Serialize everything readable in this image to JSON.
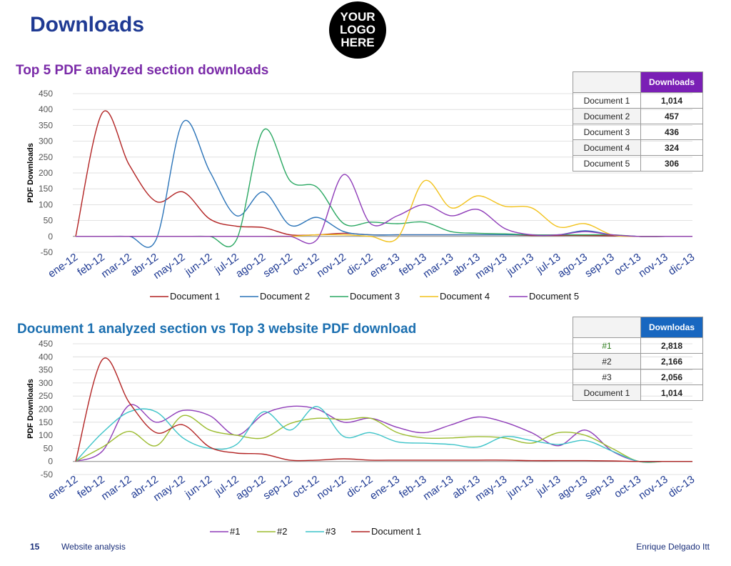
{
  "header": {
    "title": "Downloads",
    "logo_lines": [
      "YOUR",
      "LOGO",
      "HERE"
    ]
  },
  "footer": {
    "page_number": "15",
    "section": "Website analysis",
    "author": "Enrique Delgado Itt"
  },
  "colors": {
    "title": "#1f3a93",
    "doc1": "#b22222",
    "doc2": "#2a73b8",
    "doc3": "#2aa862",
    "doc4": "#f2c21c",
    "doc5": "#8e3bb8",
    "s1": "#8e3bb8",
    "s2": "#9bbb2e",
    "s3": "#3cc3c8",
    "s4": "#b22222"
  },
  "table1": {
    "header": "Downloads",
    "rows": [
      {
        "name": "Document 1",
        "value": "1,014"
      },
      {
        "name": "Document 2",
        "value": "457"
      },
      {
        "name": "Document 3",
        "value": "436"
      },
      {
        "name": "Document 4",
        "value": "324"
      },
      {
        "name": "Document 5",
        "value": "306"
      }
    ]
  },
  "table2": {
    "header": "Downlodas",
    "rows": [
      {
        "name": "#1",
        "value": "2,818"
      },
      {
        "name": "#2",
        "value": "2,166"
      },
      {
        "name": "#3",
        "value": "2,056"
      },
      {
        "name": "Document 1",
        "value": "1,014"
      }
    ]
  },
  "chart_data": [
    {
      "type": "line",
      "title": "Top 5 PDF analyzed section downloads",
      "xlabel": "",
      "ylabel": "PDF Downloads",
      "ylim": [
        -50,
        450
      ],
      "yticks": [
        -50,
        0,
        50,
        100,
        150,
        200,
        250,
        300,
        350,
        400,
        450
      ],
      "grid": true,
      "legend": "bottom",
      "categories": [
        "ene-12",
        "feb-12",
        "mar-12",
        "abr-12",
        "may-12",
        "jun-12",
        "jul-12",
        "ago-12",
        "sep-12",
        "oct-12",
        "nov-12",
        "dic-12",
        "ene-13",
        "feb-13",
        "mar-13",
        "abr-13",
        "may-13",
        "jun-13",
        "jul-13",
        "ago-13",
        "sep-13",
        "oct-13",
        "nov-13",
        "dic-13"
      ],
      "series": [
        {
          "name": "Document 1",
          "color": "#b22222",
          "values": [
            0,
            390,
            225,
            110,
            140,
            55,
            32,
            28,
            5,
            5,
            10,
            5,
            5,
            5,
            5,
            5,
            5,
            3,
            3,
            3,
            2,
            0,
            0,
            0
          ]
        },
        {
          "name": "Document 2",
          "color": "#2a73b8",
          "values": [
            0,
            0,
            0,
            -10,
            360,
            205,
            65,
            140,
            35,
            60,
            15,
            5,
            5,
            5,
            5,
            5,
            5,
            5,
            5,
            18,
            5,
            0,
            0,
            0
          ]
        },
        {
          "name": "Document 3",
          "color": "#2aa862",
          "values": [
            0,
            0,
            0,
            0,
            0,
            0,
            -10,
            335,
            175,
            155,
            40,
            45,
            40,
            45,
            15,
            10,
            8,
            5,
            5,
            5,
            5,
            0,
            0,
            0
          ]
        },
        {
          "name": "Document 4",
          "color": "#f2c21c",
          "values": [
            0,
            0,
            0,
            0,
            0,
            0,
            0,
            0,
            0,
            5,
            5,
            0,
            -5,
            175,
            90,
            128,
            95,
            90,
            30,
            40,
            5,
            0,
            0,
            0
          ]
        },
        {
          "name": "Document 5",
          "color": "#8e3bb8",
          "values": [
            0,
            0,
            0,
            0,
            0,
            0,
            0,
            0,
            0,
            -10,
            195,
            40,
            65,
            100,
            65,
            85,
            25,
            5,
            5,
            15,
            5,
            0,
            0,
            0
          ]
        }
      ]
    },
    {
      "type": "line",
      "title": "Document 1 analyzed section vs Top 3 website PDF download",
      "xlabel": "",
      "ylabel": "PDF Downloads",
      "ylim": [
        -50,
        450
      ],
      "yticks": [
        -50,
        0,
        50,
        100,
        150,
        200,
        250,
        300,
        350,
        400,
        450
      ],
      "grid": true,
      "legend": "bottom",
      "categories": [
        "ene-12",
        "feb-12",
        "mar-12",
        "abr-12",
        "may-12",
        "jun-12",
        "jul-12",
        "ago-12",
        "sep-12",
        "oct-12",
        "nov-12",
        "dic-12",
        "ene-13",
        "feb-13",
        "mar-13",
        "abr-13",
        "may-13",
        "jun-13",
        "jul-13",
        "ago-13",
        "sep-13",
        "oct-13",
        "nov-13",
        "dic-13"
      ],
      "series": [
        {
          "name": "#1",
          "color": "#8e3bb8",
          "values": [
            0,
            40,
            215,
            150,
            195,
            175,
            100,
            180,
            210,
            200,
            150,
            165,
            130,
            110,
            140,
            170,
            150,
            110,
            60,
            120,
            40,
            0,
            0,
            0
          ]
        },
        {
          "name": "#2",
          "color": "#9bbb2e",
          "values": [
            0,
            55,
            115,
            60,
            175,
            120,
            100,
            90,
            145,
            165,
            160,
            165,
            110,
            90,
            90,
            95,
            90,
            70,
            110,
            100,
            50,
            0,
            0,
            0
          ]
        },
        {
          "name": "#3",
          "color": "#3cc3c8",
          "values": [
            0,
            110,
            190,
            190,
            90,
            50,
            65,
            190,
            120,
            210,
            95,
            110,
            75,
            70,
            65,
            55,
            95,
            80,
            65,
            80,
            40,
            0,
            0,
            0
          ]
        },
        {
          "name": "Document 1",
          "color": "#b22222",
          "values": [
            0,
            390,
            225,
            110,
            140,
            55,
            32,
            28,
            5,
            5,
            10,
            5,
            5,
            5,
            5,
            5,
            5,
            3,
            3,
            3,
            2,
            0,
            0,
            0
          ]
        }
      ]
    }
  ]
}
